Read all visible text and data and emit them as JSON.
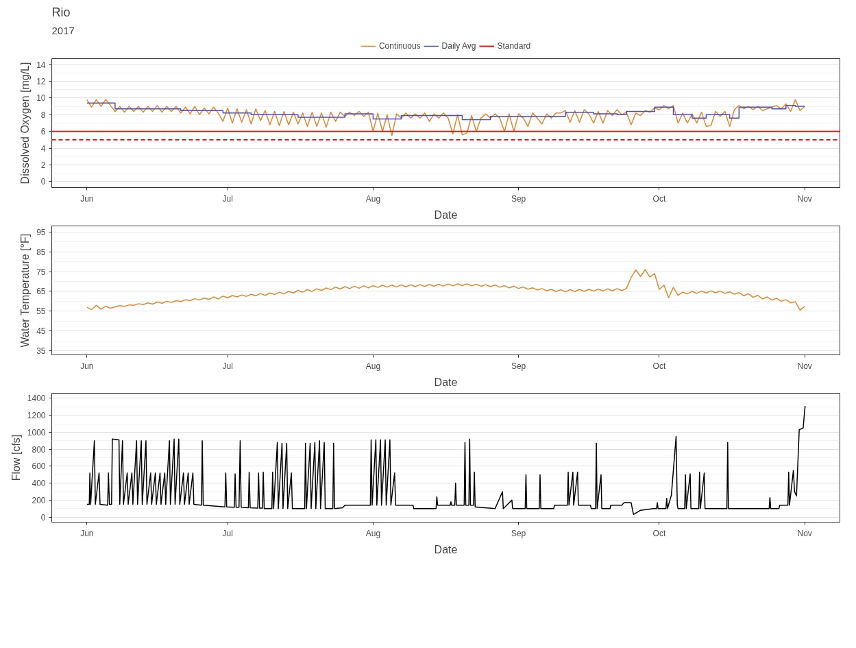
{
  "chart_data": [
    {
      "type": "line",
      "title": "Rio",
      "subtitle": "2017",
      "xlabel": "Date",
      "ylabel": "Dissolved Oxygen [mg/L]",
      "legend": "top",
      "grid": "y",
      "xlim": [
        "2017-05-24T12:00",
        "2017-11-08T12:00"
      ],
      "xticks": [
        {
          "value": "2017-06-01",
          "label": "Jun"
        },
        {
          "value": "2017-07-01",
          "label": "Jul"
        },
        {
          "value": "2017-08-01",
          "label": "Aug"
        },
        {
          "value": "2017-09-01",
          "label": "Sep"
        },
        {
          "value": "2017-10-01",
          "label": "Oct"
        },
        {
          "value": "2017-11-01",
          "label": "Nov"
        }
      ],
      "ylim": [
        -0.7,
        14.7
      ],
      "yticks": [
        0,
        2,
        4,
        6,
        8,
        10,
        12,
        14
      ],
      "x": [
        "2017-06-01",
        "2017-06-02",
        "2017-06-03",
        "2017-06-04",
        "2017-06-05",
        "2017-06-06",
        "2017-06-07",
        "2017-06-08",
        "2017-06-09",
        "2017-06-10",
        "2017-06-11",
        "2017-06-12",
        "2017-06-13",
        "2017-06-14",
        "2017-06-15",
        "2017-06-16",
        "2017-06-17",
        "2017-06-18",
        "2017-06-19",
        "2017-06-20",
        "2017-06-21",
        "2017-06-22",
        "2017-06-23",
        "2017-06-24",
        "2017-06-25",
        "2017-06-26",
        "2017-06-27",
        "2017-06-28",
        "2017-06-29",
        "2017-06-30",
        "2017-07-01",
        "2017-07-02",
        "2017-07-03",
        "2017-07-04",
        "2017-07-05",
        "2017-07-06",
        "2017-07-07",
        "2017-07-08",
        "2017-07-09",
        "2017-07-10",
        "2017-07-11",
        "2017-07-12",
        "2017-07-13",
        "2017-07-14",
        "2017-07-15",
        "2017-07-16",
        "2017-07-17",
        "2017-07-18",
        "2017-07-19",
        "2017-07-20",
        "2017-07-21",
        "2017-07-22",
        "2017-07-23",
        "2017-07-24",
        "2017-07-25",
        "2017-07-26",
        "2017-07-27",
        "2017-07-28",
        "2017-07-29",
        "2017-07-30",
        "2017-07-31",
        "2017-08-01",
        "2017-08-02",
        "2017-08-03",
        "2017-08-04",
        "2017-08-05",
        "2017-08-06",
        "2017-08-07",
        "2017-08-08",
        "2017-08-09",
        "2017-08-10",
        "2017-08-11",
        "2017-08-12",
        "2017-08-13",
        "2017-08-14",
        "2017-08-15",
        "2017-08-16",
        "2017-08-17",
        "2017-08-18",
        "2017-08-19",
        "2017-08-20",
        "2017-08-21",
        "2017-08-22",
        "2017-08-23",
        "2017-08-24",
        "2017-08-25",
        "2017-08-26",
        "2017-08-27",
        "2017-08-28",
        "2017-08-29",
        "2017-08-30",
        "2017-08-31",
        "2017-09-01",
        "2017-09-02",
        "2017-09-03",
        "2017-09-04",
        "2017-09-05",
        "2017-09-06",
        "2017-09-07",
        "2017-09-08",
        "2017-09-09",
        "2017-09-10",
        "2017-09-11",
        "2017-09-12",
        "2017-09-13",
        "2017-09-14",
        "2017-09-15",
        "2017-09-16",
        "2017-09-17",
        "2017-09-18",
        "2017-09-19",
        "2017-09-20",
        "2017-09-21",
        "2017-09-22",
        "2017-09-23",
        "2017-09-24",
        "2017-09-25",
        "2017-09-26",
        "2017-09-27",
        "2017-09-28",
        "2017-09-29",
        "2017-09-30",
        "2017-10-01",
        "2017-10-02",
        "2017-10-03",
        "2017-10-04",
        "2017-10-05",
        "2017-10-06",
        "2017-10-07",
        "2017-10-08",
        "2017-10-09",
        "2017-10-10",
        "2017-10-11",
        "2017-10-12",
        "2017-10-13",
        "2017-10-14",
        "2017-10-15",
        "2017-10-16",
        "2017-10-17",
        "2017-10-18",
        "2017-10-19",
        "2017-10-20",
        "2017-10-21",
        "2017-10-22",
        "2017-10-23",
        "2017-10-24",
        "2017-10-25",
        "2017-10-26",
        "2017-10-27",
        "2017-10-28",
        "2017-10-29",
        "2017-10-30",
        "2017-10-31",
        "2017-11-01"
      ],
      "series": [
        {
          "name": "Continuous",
          "color": "#e3872d",
          "values": [
            9.8,
            8.9,
            9.8,
            9.0,
            9.8,
            9.1,
            8.4,
            9.0,
            8.3,
            9.0,
            8.4,
            9.0,
            8.3,
            9.0,
            8.4,
            9.1,
            8.3,
            9.0,
            8.4,
            9.0,
            8.2,
            8.9,
            8.1,
            9.0,
            8.0,
            8.8,
            8.1,
            8.9,
            8.2,
            7.2,
            8.8,
            7.0,
            8.7,
            7.1,
            8.6,
            6.9,
            8.7,
            7.3,
            8.5,
            6.8,
            8.4,
            6.7,
            8.4,
            6.8,
            8.3,
            6.9,
            8.2,
            6.6,
            8.3,
            6.6,
            8.2,
            6.5,
            8.3,
            7.2,
            8.3,
            7.8,
            8.3,
            7.9,
            8.4,
            7.8,
            8.3,
            6.0,
            8.2,
            6.0,
            8.0,
            5.5,
            8.1,
            7.6,
            8.2,
            7.6,
            8.1,
            7.6,
            8.2,
            7.2,
            8.1,
            7.6,
            8.2,
            7.6,
            5.7,
            8.0,
            5.6,
            5.8,
            7.9,
            6.0,
            7.6,
            8.1,
            7.6,
            8.1,
            7.6,
            6.0,
            8.1,
            6.0,
            8.1,
            7.6,
            6.6,
            8.2,
            7.6,
            6.9,
            8.1,
            7.6,
            8.2,
            8.2,
            8.5,
            7.1,
            8.5,
            7.1,
            8.6,
            8.1,
            7.0,
            8.4,
            7.0,
            8.5,
            7.9,
            8.6,
            8.0,
            8.3,
            6.8,
            8.2,
            7.9,
            8.5,
            8.3,
            8.8,
            8.6,
            9.1,
            8.7,
            9.1,
            7.0,
            8.2,
            7.0,
            8.1,
            7.0,
            8.3,
            6.6,
            6.7,
            8.4,
            7.8,
            8.4,
            6.6,
            8.6,
            9.1,
            8.7,
            9.0,
            8.6,
            9.0,
            8.5,
            8.7,
            8.9,
            9.1,
            8.7,
            9.3,
            8.4,
            9.8,
            8.5,
            9.0
          ]
        },
        {
          "name": "Daily Avg",
          "type": "step",
          "color": "#4b4fc4",
          "x": [
            "2017-06-01",
            "2017-06-07",
            "2017-06-21",
            "2017-06-30",
            "2017-07-06",
            "2017-07-16",
            "2017-07-26",
            "2017-08-01",
            "2017-08-07",
            "2017-08-20",
            "2017-08-26",
            "2017-09-11",
            "2017-09-17",
            "2017-09-22",
            "2017-09-24",
            "2017-09-30",
            "2017-10-04",
            "2017-10-08",
            "2017-10-11",
            "2017-10-16",
            "2017-10-18",
            "2017-10-25",
            "2017-10-28",
            "2017-10-30",
            "2017-11-01"
          ],
          "values": [
            9.4,
            8.7,
            8.5,
            8.2,
            8.0,
            7.7,
            8.1,
            7.5,
            7.9,
            7.4,
            7.8,
            8.3,
            8.1,
            8.0,
            8.4,
            8.9,
            8.0,
            7.6,
            8.0,
            7.6,
            8.9,
            8.7,
            9.1,
            9.0,
            9.0
          ]
        }
      ],
      "ref_lines": [
        {
          "axis": "y",
          "value": 6,
          "label": "Standard",
          "color": "#ff0000",
          "line_style": "solid"
        },
        {
          "axis": "y",
          "value": 5,
          "color": "#ff0000",
          "line_style": "dashed"
        }
      ]
    },
    {
      "type": "line",
      "xlabel": "Date",
      "ylabel": "Water Temperature [°F]",
      "grid": "y",
      "xlim": [
        "2017-05-24T12:00",
        "2017-11-08T12:00"
      ],
      "xticks": [
        {
          "value": "2017-06-01",
          "label": "Jun"
        },
        {
          "value": "2017-07-01",
          "label": "Jul"
        },
        {
          "value": "2017-08-01",
          "label": "Aug"
        },
        {
          "value": "2017-09-01",
          "label": "Sep"
        },
        {
          "value": "2017-10-01",
          "label": "Oct"
        },
        {
          "value": "2017-11-01",
          "label": "Nov"
        }
      ],
      "ylim": [
        33,
        98
      ],
      "yticks": [
        35,
        45,
        55,
        65,
        75,
        85,
        95
      ],
      "x": [
        "2017-06-01",
        "2017-06-02",
        "2017-06-03",
        "2017-06-04",
        "2017-06-05",
        "2017-06-06",
        "2017-06-07",
        "2017-06-08",
        "2017-06-09",
        "2017-06-10",
        "2017-06-11",
        "2017-06-12",
        "2017-06-13",
        "2017-06-14",
        "2017-06-15",
        "2017-06-16",
        "2017-06-17",
        "2017-06-18",
        "2017-06-19",
        "2017-06-20",
        "2017-06-21",
        "2017-06-22",
        "2017-06-23",
        "2017-06-24",
        "2017-06-25",
        "2017-06-26",
        "2017-06-27",
        "2017-06-28",
        "2017-06-29",
        "2017-06-30",
        "2017-07-01",
        "2017-07-02",
        "2017-07-03",
        "2017-07-04",
        "2017-07-05",
        "2017-07-06",
        "2017-07-07",
        "2017-07-08",
        "2017-07-09",
        "2017-07-10",
        "2017-07-11",
        "2017-07-12",
        "2017-07-13",
        "2017-07-14",
        "2017-07-15",
        "2017-07-16",
        "2017-07-17",
        "2017-07-18",
        "2017-07-19",
        "2017-07-20",
        "2017-07-21",
        "2017-07-22",
        "2017-07-23",
        "2017-07-24",
        "2017-07-25",
        "2017-07-26",
        "2017-07-27",
        "2017-07-28",
        "2017-07-29",
        "2017-07-30",
        "2017-07-31",
        "2017-08-01",
        "2017-08-02",
        "2017-08-03",
        "2017-08-04",
        "2017-08-05",
        "2017-08-06",
        "2017-08-07",
        "2017-08-08",
        "2017-08-09",
        "2017-08-10",
        "2017-08-11",
        "2017-08-12",
        "2017-08-13",
        "2017-08-14",
        "2017-08-15",
        "2017-08-16",
        "2017-08-17",
        "2017-08-18",
        "2017-08-19",
        "2017-08-20",
        "2017-08-21",
        "2017-08-22",
        "2017-08-23",
        "2017-08-24",
        "2017-08-25",
        "2017-08-26",
        "2017-08-27",
        "2017-08-28",
        "2017-08-29",
        "2017-08-30",
        "2017-08-31",
        "2017-09-01",
        "2017-09-02",
        "2017-09-03",
        "2017-09-04",
        "2017-09-05",
        "2017-09-06",
        "2017-09-07",
        "2017-09-08",
        "2017-09-09",
        "2017-09-10",
        "2017-09-11",
        "2017-09-12",
        "2017-09-13",
        "2017-09-14",
        "2017-09-15",
        "2017-09-16",
        "2017-09-17",
        "2017-09-18",
        "2017-09-19",
        "2017-09-20",
        "2017-09-21",
        "2017-09-22",
        "2017-09-23",
        "2017-09-24",
        "2017-09-25",
        "2017-09-26",
        "2017-09-27",
        "2017-09-28",
        "2017-09-29",
        "2017-09-30",
        "2017-10-01",
        "2017-10-02",
        "2017-10-03",
        "2017-10-04",
        "2017-10-05",
        "2017-10-06",
        "2017-10-07",
        "2017-10-08",
        "2017-10-09",
        "2017-10-10",
        "2017-10-11",
        "2017-10-12",
        "2017-10-13",
        "2017-10-14",
        "2017-10-15",
        "2017-10-16",
        "2017-10-17",
        "2017-10-18",
        "2017-10-19",
        "2017-10-20",
        "2017-10-21",
        "2017-10-22",
        "2017-10-23",
        "2017-10-24",
        "2017-10-25",
        "2017-10-26",
        "2017-10-27",
        "2017-10-28",
        "2017-10-29",
        "2017-10-30",
        "2017-10-31",
        "2017-11-01"
      ],
      "series": [
        {
          "color": "#e3872d",
          "values": [
            57.0,
            55.8,
            58.0,
            56.0,
            57.5,
            56.5,
            57.2,
            57.8,
            57.5,
            58.2,
            58.0,
            58.8,
            58.3,
            59.2,
            58.6,
            59.6,
            59.0,
            60.0,
            59.4,
            60.3,
            59.9,
            60.8,
            60.3,
            61.3,
            60.7,
            61.6,
            61.0,
            62.2,
            61.2,
            62.6,
            61.8,
            62.9,
            62.2,
            63.2,
            62.5,
            63.5,
            62.8,
            63.9,
            63.0,
            64.2,
            63.4,
            64.6,
            63.8,
            65.0,
            64.2,
            65.5,
            64.6,
            65.9,
            65.0,
            66.3,
            65.5,
            66.7,
            65.9,
            67.2,
            66.2,
            67.4,
            66.4,
            67.6,
            66.6,
            67.8,
            66.8,
            67.9,
            67.0,
            68.1,
            67.1,
            68.2,
            67.2,
            68.3,
            67.3,
            68.3,
            67.4,
            68.4,
            67.5,
            68.5,
            67.6,
            68.6,
            67.7,
            68.7,
            67.8,
            68.8,
            67.9,
            68.8,
            67.8,
            68.6,
            67.6,
            68.4,
            67.4,
            68.2,
            67.1,
            67.9,
            66.8,
            67.6,
            66.5,
            67.2,
            66.1,
            66.8,
            65.7,
            66.4,
            65.3,
            66.0,
            64.9,
            65.8,
            64.8,
            65.9,
            64.9,
            66.0,
            65.0,
            66.1,
            65.1,
            66.2,
            65.2,
            66.3,
            65.3,
            66.4,
            65.4,
            66.5,
            72.0,
            75.8,
            72.5,
            75.9,
            72.2,
            74.0,
            66.0,
            68.2,
            61.8,
            67.0,
            63.0,
            64.6,
            63.8,
            65.0,
            64.0,
            65.2,
            64.2,
            65.3,
            64.3,
            65.2,
            64.0,
            64.8,
            63.6,
            64.4,
            62.8,
            63.8,
            62.0,
            63.0,
            61.2,
            62.2,
            60.6,
            61.5,
            60.0,
            60.8,
            59.2,
            59.8,
            55.5,
            57.5
          ]
        }
      ]
    },
    {
      "type": "line",
      "xlabel": "Date",
      "ylabel": "Flow [cfs]",
      "grid": "y",
      "xlim": [
        "2017-05-24T12:00",
        "2017-11-08T12:00"
      ],
      "xticks": [
        {
          "value": "2017-06-01",
          "label": "Jun"
        },
        {
          "value": "2017-07-01",
          "label": "Jul"
        },
        {
          "value": "2017-08-01",
          "label": "Aug"
        },
        {
          "value": "2017-09-01",
          "label": "Sep"
        },
        {
          "value": "2017-10-01",
          "label": "Oct"
        },
        {
          "value": "2017-11-01",
          "label": "Nov"
        }
      ],
      "ylim": [
        -60,
        1460
      ],
      "yticks": [
        0,
        200,
        400,
        600,
        800,
        1000,
        1200,
        1400
      ],
      "series": [
        {
          "color": "#000000",
          "x": [
            "2017-06-01T00:00",
            "2017-06-01T12:00",
            "2017-06-01T15:00",
            "2017-06-01T19:00",
            "2017-06-02T14:00",
            "2017-06-02T19:00",
            "2017-06-03T14:00",
            "2017-06-03T19:00",
            "2017-06-05T10:00",
            "2017-06-05T14:00",
            "2017-06-05T19:00",
            "2017-06-06T06:00",
            "2017-06-06T10:00",
            "2017-06-07T20:00",
            "2017-06-08T00:00",
            "2017-06-08T14:00",
            "2017-06-08T19:00",
            "2017-06-09T14:00",
            "2017-06-09T19:00",
            "2017-06-10T14:00",
            "2017-06-10T19:00",
            "2017-06-11T14:00",
            "2017-06-11T19:00",
            "2017-06-12T14:00",
            "2017-06-12T19:00",
            "2017-06-13T14:00",
            "2017-06-13T19:00",
            "2017-06-14T14:00",
            "2017-06-14T19:00",
            "2017-06-15T14:00",
            "2017-06-15T19:00",
            "2017-06-16T14:00",
            "2017-06-16T19:00",
            "2017-06-17T14:00",
            "2017-06-17T19:00",
            "2017-06-18T14:00",
            "2017-06-18T19:00",
            "2017-06-19T14:00",
            "2017-06-19T19:00",
            "2017-06-20T14:00",
            "2017-06-20T19:00",
            "2017-06-21T14:00",
            "2017-06-21T19:00",
            "2017-06-22T14:00",
            "2017-06-22T19:00",
            "2017-06-23T14:00",
            "2017-06-23T19:00",
            "2017-06-25T10:00",
            "2017-06-25T14:00",
            "2017-06-25T19:00",
            "2017-06-30T10:00",
            "2017-06-30T14:00",
            "2017-06-30T19:00",
            "2017-07-02T10:00",
            "2017-07-02T14:00",
            "2017-07-02T19:00",
            "2017-07-03T10:00",
            "2017-07-03T16:00",
            "2017-07-03T21:00",
            "2017-07-05T10:00",
            "2017-07-05T14:00",
            "2017-07-05T19:00",
            "2017-07-07T10:00",
            "2017-07-07T14:00",
            "2017-07-07T19:00",
            "2017-07-08T10:00",
            "2017-07-08T14:00",
            "2017-07-08T19:00",
            "2017-07-10T10:00",
            "2017-07-10T14:00",
            "2017-07-10T19:00",
            "2017-07-11T14:00",
            "2017-07-11T19:00",
            "2017-07-12T14:00",
            "2017-07-12T19:00",
            "2017-07-13T14:00",
            "2017-07-13T19:00",
            "2017-07-14T14:00",
            "2017-07-14T19:00",
            "2017-07-17T10:00",
            "2017-07-17T14:00",
            "2017-07-17T19:00",
            "2017-07-18T14:00",
            "2017-07-18T19:00",
            "2017-07-19T14:00",
            "2017-07-19T19:00",
            "2017-07-20T14:00",
            "2017-07-20T19:00",
            "2017-07-21T14:00",
            "2017-07-21T19:00",
            "2017-07-23T10:00",
            "2017-07-23T14:00",
            "2017-07-23T19:00",
            "2017-07-25T12:00",
            "2017-07-26T00:00",
            "2017-07-31T10:00",
            "2017-07-31T14:00",
            "2017-07-31T19:00",
            "2017-08-01T14:00",
            "2017-08-01T19:00",
            "2017-08-02T14:00",
            "2017-08-02T19:00",
            "2017-08-03T14:00",
            "2017-08-03T19:00",
            "2017-08-04T14:00",
            "2017-08-04T19:00",
            "2017-08-05T14:00",
            "2017-08-05T19:00",
            "2017-08-09T12:00",
            "2017-08-09T16:00",
            "2017-08-14T10:00",
            "2017-08-14T14:00",
            "2017-08-14T18:00",
            "2017-08-17T10:00",
            "2017-08-17T14:00",
            "2017-08-17T18:00",
            "2017-08-18T10:00",
            "2017-08-18T14:00",
            "2017-08-18T18:00",
            "2017-08-20T10:00",
            "2017-08-20T14:00",
            "2017-08-20T18:00",
            "2017-08-21T10:00",
            "2017-08-21T14:00",
            "2017-08-21T18:00",
            "2017-08-22T10:00",
            "2017-08-22T14:00",
            "2017-08-22T18:00",
            "2017-08-27T00:00",
            "2017-08-28T14:00",
            "2017-08-28T18:00",
            "2017-08-30T14:00",
            "2017-08-30T18:00",
            "2017-09-02T10:00",
            "2017-09-02T14:00",
            "2017-09-02T18:00",
            "2017-09-05T10:00",
            "2017-09-05T14:00",
            "2017-09-05T18:00",
            "2017-09-08T12:00",
            "2017-09-08T16:00",
            "2017-09-11T10:00",
            "2017-09-11T14:00",
            "2017-09-11T18:00",
            "2017-09-12T14:00",
            "2017-09-12T18:00",
            "2017-09-13T14:00",
            "2017-09-13T18:00",
            "2017-09-16T08:00",
            "2017-09-16T12:00",
            "2017-09-17T10:00",
            "2017-09-17T14:00",
            "2017-09-17T18:00",
            "2017-09-18T14:00",
            "2017-09-18T18:00",
            "2017-09-20T12:00",
            "2017-09-20T16:00",
            "2017-09-23T00:00",
            "2017-09-23T12:00",
            "2017-09-25T00:00",
            "2017-09-25T12:00",
            "2017-09-27T00:00",
            "2017-09-29T18:00",
            "2017-09-30T10:00",
            "2017-09-30T14:00",
            "2017-09-30T18:00",
            "2017-10-02T10:00",
            "2017-10-02T14:00",
            "2017-10-02T18:00",
            "2017-10-03T14:00",
            "2017-10-04T14:00",
            "2017-10-04T20:00",
            "2017-10-05T00:00",
            "2017-10-06T10:00",
            "2017-10-06T14:00",
            "2017-10-06T18:00",
            "2017-10-07T14:00",
            "2017-10-07T18:00",
            "2017-10-09T10:00",
            "2017-10-09T14:00",
            "2017-10-09T18:00",
            "2017-10-10T14:00",
            "2017-10-10T18:00",
            "2017-10-15T10:00",
            "2017-10-15T14:00",
            "2017-10-15T18:00",
            "2017-10-24T10:00",
            "2017-10-24T14:00",
            "2017-10-24T18:00",
            "2017-10-26T12:00",
            "2017-10-26T16:00",
            "2017-10-28T10:00",
            "2017-10-28T14:00",
            "2017-10-28T18:00",
            "2017-10-29T14:00",
            "2017-10-29T20:00",
            "2017-10-30T06:00",
            "2017-10-30T20:00",
            "2017-10-31T16:00",
            "2017-11-01T02:00"
          ],
          "values": [
            150,
            150,
            520,
            150,
            900,
            150,
            520,
            150,
            140,
            520,
            150,
            150,
            920,
            910,
            150,
            900,
            150,
            520,
            150,
            520,
            150,
            900,
            150,
            900,
            150,
            900,
            150,
            520,
            150,
            520,
            150,
            520,
            150,
            520,
            150,
            900,
            150,
            920,
            150,
            920,
            150,
            520,
            150,
            520,
            150,
            520,
            150,
            140,
            900,
            140,
            120,
            520,
            120,
            115,
            510,
            115,
            115,
            900,
            115,
            110,
            530,
            110,
            105,
            520,
            105,
            105,
            530,
            100,
            100,
            530,
            100,
            880,
            100,
            870,
            100,
            870,
            100,
            520,
            100,
            100,
            870,
            100,
            870,
            100,
            880,
            100,
            900,
            100,
            880,
            100,
            100,
            870,
            100,
            110,
            140,
            140,
            910,
            140,
            910,
            140,
            910,
            140,
            910,
            140,
            910,
            140,
            520,
            140,
            140,
            100,
            100,
            240,
            140,
            140,
            180,
            140,
            140,
            400,
            140,
            140,
            880,
            140,
            140,
            920,
            140,
            140,
            530,
            120,
            100,
            300,
            100,
            200,
            100,
            100,
            500,
            100,
            100,
            500,
            100,
            100,
            140,
            140,
            530,
            140,
            530,
            140,
            530,
            140,
            140,
            100,
            100,
            870,
            100,
            500,
            100,
            100,
            140,
            140,
            170,
            170,
            30,
            80,
            100,
            100,
            170,
            100,
            100,
            220,
            100,
            260,
            950,
            150,
            100,
            100,
            500,
            100,
            510,
            100,
            100,
            530,
            100,
            520,
            100,
            100,
            880,
            100,
            100,
            230,
            100,
            100,
            140,
            140,
            530,
            140,
            550,
            300,
            250,
            1030,
            1050,
            1310
          ]
        }
      ]
    }
  ]
}
